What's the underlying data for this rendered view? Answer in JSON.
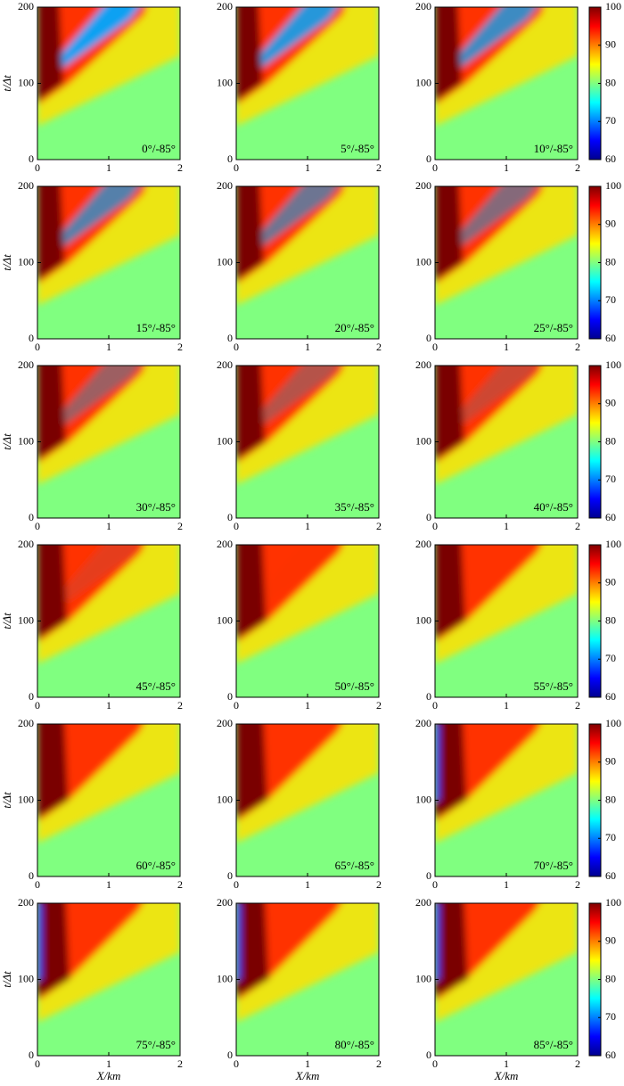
{
  "chart_data": [
    {
      "type": "heatmap",
      "label": "0°/-85°",
      "ylabel": "t/Δt",
      "xlim": [
        0,
        2
      ],
      "xticks": [
        0,
        1,
        2
      ],
      "ylim": [
        0,
        200
      ],
      "yticks": [
        0,
        100,
        200
      ]
    },
    {
      "type": "heatmap",
      "label": "5°/-85°",
      "xlim": [
        0,
        2
      ],
      "xticks": [
        0,
        1,
        2
      ],
      "ylim": [
        0,
        200
      ],
      "yticks": [
        0,
        100,
        200
      ]
    },
    {
      "type": "heatmap",
      "label": "10°/-85°",
      "xlim": [
        0,
        2
      ],
      "xticks": [
        0,
        1,
        2
      ],
      "ylim": [
        0,
        200
      ],
      "yticks": [
        0,
        100,
        200
      ],
      "colormap": "jet",
      "clim": [
        60,
        100
      ],
      "cticks": [
        60,
        70,
        80,
        90,
        100
      ]
    },
    {
      "type": "heatmap",
      "label": "15°/-85°",
      "ylabel": "t/Δt",
      "xlim": [
        0,
        2
      ],
      "xticks": [
        0,
        1,
        2
      ],
      "ylim": [
        0,
        200
      ],
      "yticks": [
        0,
        100,
        200
      ]
    },
    {
      "type": "heatmap",
      "label": "20°/-85°",
      "xlim": [
        0,
        2
      ],
      "xticks": [
        0,
        1,
        2
      ],
      "ylim": [
        0,
        200
      ],
      "yticks": [
        0,
        100,
        200
      ]
    },
    {
      "type": "heatmap",
      "label": "25°/-85°",
      "xlim": [
        0,
        2
      ],
      "xticks": [
        0,
        1,
        2
      ],
      "ylim": [
        0,
        200
      ],
      "yticks": [
        0,
        100,
        200
      ],
      "colormap": "jet",
      "clim": [
        60,
        100
      ],
      "cticks": [
        60,
        70,
        80,
        90,
        100
      ]
    },
    {
      "type": "heatmap",
      "label": "30°/-85°",
      "ylabel": "t/Δt",
      "xlim": [
        0,
        2
      ],
      "xticks": [
        0,
        1,
        2
      ],
      "ylim": [
        0,
        200
      ],
      "yticks": [
        0,
        100,
        200
      ]
    },
    {
      "type": "heatmap",
      "label": "35°/-85°",
      "xlim": [
        0,
        2
      ],
      "xticks": [
        0,
        1,
        2
      ],
      "ylim": [
        0,
        200
      ],
      "yticks": [
        0,
        100,
        200
      ]
    },
    {
      "type": "heatmap",
      "label": "40°/-85°",
      "xlim": [
        0,
        2
      ],
      "xticks": [
        0,
        1,
        2
      ],
      "ylim": [
        0,
        200
      ],
      "yticks": [
        0,
        100,
        200
      ],
      "colormap": "jet",
      "clim": [
        60,
        100
      ],
      "cticks": [
        60,
        70,
        80,
        90,
        100
      ]
    },
    {
      "type": "heatmap",
      "label": "45°/-85°",
      "ylabel": "t/Δt",
      "xlim": [
        0,
        2
      ],
      "xticks": [
        0,
        1,
        2
      ],
      "ylim": [
        0,
        200
      ],
      "yticks": [
        0,
        100,
        200
      ]
    },
    {
      "type": "heatmap",
      "label": "50°/-85°",
      "xlim": [
        0,
        2
      ],
      "xticks": [
        0,
        1,
        2
      ],
      "ylim": [
        0,
        200
      ],
      "yticks": [
        0,
        100,
        200
      ]
    },
    {
      "type": "heatmap",
      "label": "55°/-85°",
      "xlim": [
        0,
        2
      ],
      "xticks": [
        0,
        1,
        2
      ],
      "ylim": [
        0,
        200
      ],
      "yticks": [
        0,
        100,
        200
      ],
      "colormap": "jet",
      "clim": [
        60,
        100
      ],
      "cticks": [
        60,
        70,
        80,
        90,
        100
      ]
    },
    {
      "type": "heatmap",
      "label": "60°/-85°",
      "ylabel": "t/Δt",
      "xlim": [
        0,
        2
      ],
      "xticks": [
        0,
        1,
        2
      ],
      "ylim": [
        0,
        200
      ],
      "yticks": [
        0,
        100,
        200
      ]
    },
    {
      "type": "heatmap",
      "label": "65°/-85°",
      "xlim": [
        0,
        2
      ],
      "xticks": [
        0,
        1,
        2
      ],
      "ylim": [
        0,
        200
      ],
      "yticks": [
        0,
        100,
        200
      ]
    },
    {
      "type": "heatmap",
      "label": "70°/-85°",
      "xlim": [
        0,
        2
      ],
      "xticks": [
        0,
        1,
        2
      ],
      "ylim": [
        0,
        200
      ],
      "yticks": [
        0,
        100,
        200
      ],
      "colormap": "jet",
      "clim": [
        60,
        100
      ],
      "cticks": [
        60,
        70,
        80,
        90,
        100
      ]
    },
    {
      "type": "heatmap",
      "label": "75°/-85°",
      "ylabel": "t/Δt",
      "xlabel": "X/km",
      "xlim": [
        0,
        2
      ],
      "xticks": [
        0,
        1,
        2
      ],
      "ylim": [
        0,
        200
      ],
      "yticks": [
        0,
        100,
        200
      ]
    },
    {
      "type": "heatmap",
      "label": "80°/-85°",
      "xlabel": "X/km",
      "xlim": [
        0,
        2
      ],
      "xticks": [
        0,
        1,
        2
      ],
      "ylim": [
        0,
        200
      ],
      "yticks": [
        0,
        100,
        200
      ]
    },
    {
      "type": "heatmap",
      "label": "85°/-85°",
      "xlabel": "X/km",
      "xlim": [
        0,
        2
      ],
      "xticks": [
        0,
        1,
        2
      ],
      "ylim": [
        0,
        200
      ],
      "yticks": [
        0,
        100,
        200
      ],
      "colormap": "jet",
      "clim": [
        60,
        100
      ],
      "cticks": [
        60,
        70,
        80,
        90,
        100
      ]
    }
  ]
}
